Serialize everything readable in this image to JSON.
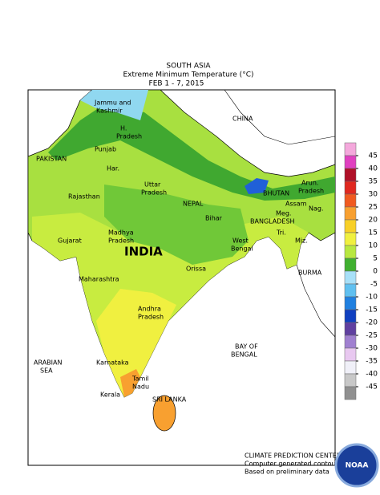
{
  "header": {
    "region": "SOUTH ASIA",
    "title": "Extreme Minimum Temperature (°C)",
    "dates": "FEB 1 - 7, 2015"
  },
  "places": {
    "jammu": "Jammu and",
    "kashmir": "Kashmir",
    "hp": "H.",
    "hp2": "Pradesh",
    "punjab": "Punjab",
    "har": "Har.",
    "up": "Uttar",
    "up2": "Pradesh",
    "nepal": "NEPAL",
    "pakistan": "PAKISTAN",
    "china": "CHINA",
    "rajasthan": "Rajasthan",
    "bhutan": "BHUTAN",
    "arun": "Arun.",
    "arun2": "Pradesh",
    "assam": "Assam",
    "nag": "Nag.",
    "bihar": "Bihar",
    "bangladesh": "BANGLADESH",
    "meg": "Meg.",
    "gujarat": "Gujarat",
    "mp": "Madhya",
    "mp2": "Pradesh",
    "india": "INDIA",
    "wb": "West",
    "wb2": "Bengal",
    "tri": "Tri.",
    "miz": "Miz.",
    "orissa": "Orissa",
    "burma": "BURMA",
    "maharashtra": "Maharashtra",
    "ap": "Andhra",
    "ap2": "Pradesh",
    "arabian": "ARABIAN",
    "arabian2": "SEA",
    "bay": "BAY OF",
    "bay2": "BENGAL",
    "karnataka": "Karnataka",
    "tn": "Tamil",
    "tn2": "Nadu",
    "kerala": "Kerala",
    "srilanka": "SRI LANKA"
  },
  "footer": {
    "line1": "CLIMATE PREDICTION CENTER, NOAA",
    "line2": "Computer generated contours",
    "line3": "Based on preliminary data",
    "logo": "NOAA"
  },
  "legend": {
    "ticks": [
      45,
      40,
      35,
      30,
      25,
      20,
      15,
      10,
      5,
      0,
      -5,
      -10,
      -15,
      -20,
      -25,
      -30,
      -35,
      -40,
      -45
    ],
    "colors": [
      "#f4a8dc",
      "#e040c0",
      "#b01028",
      "#e02820",
      "#f05a20",
      "#f8a030",
      "#f8d028",
      "#f0f040",
      "#b8e840",
      "#40b030",
      "#a8e0f8",
      "#60c0f0",
      "#2080e0",
      "#1040c0",
      "#6040a0",
      "#a080d0",
      "#e8c8f0",
      "#f0f0f8",
      "#c8c8c8",
      "#909090"
    ]
  }
}
